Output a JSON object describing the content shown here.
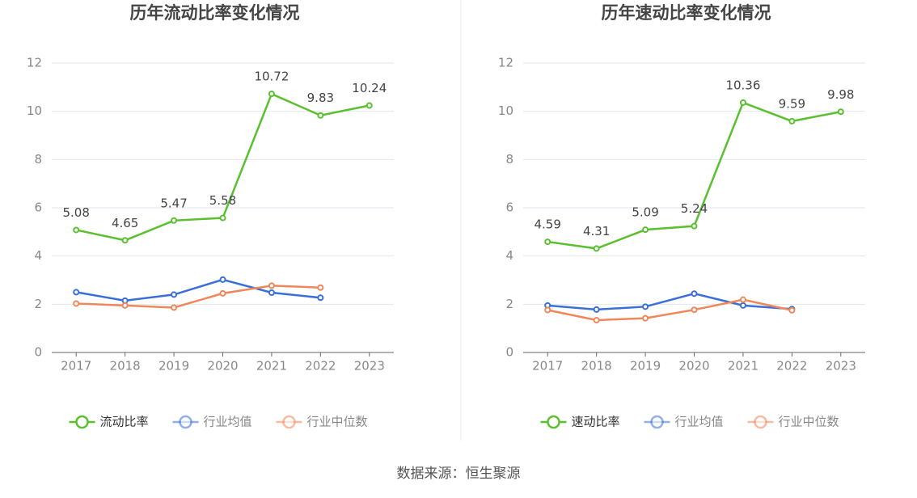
{
  "chart_data": [
    {
      "type": "line",
      "title": "历年流动比率变化情况",
      "categories": [
        "2017",
        "2018",
        "2019",
        "2020",
        "2021",
        "2022",
        "2023"
      ],
      "series": [
        {
          "name": "流动比率",
          "color": "#5ac02f",
          "data_labels": true,
          "values": [
            5.08,
            4.65,
            5.47,
            5.58,
            10.72,
            9.83,
            10.24
          ]
        },
        {
          "name": "行业均值",
          "color": "#3a6fd8",
          "values": [
            2.5,
            2.15,
            2.4,
            3.02,
            2.48,
            2.27,
            null
          ]
        },
        {
          "name": "行业中位数",
          "color": "#f0875a",
          "values": [
            2.03,
            1.95,
            1.86,
            2.45,
            2.77,
            2.69,
            null
          ]
        }
      ],
      "ylim": [
        0,
        12
      ],
      "yticks": [
        0,
        2,
        4,
        6,
        8,
        10,
        12
      ],
      "grid": true,
      "legend": "bottom"
    },
    {
      "type": "line",
      "title": "历年速动比率变化情况",
      "categories": [
        "2017",
        "2018",
        "2019",
        "2020",
        "2021",
        "2022",
        "2023"
      ],
      "series": [
        {
          "name": "速动比率",
          "color": "#5ac02f",
          "data_labels": true,
          "values": [
            4.59,
            4.31,
            5.09,
            5.24,
            10.36,
            9.59,
            9.98
          ]
        },
        {
          "name": "行业均值",
          "color": "#3a6fd8",
          "values": [
            1.95,
            1.78,
            1.9,
            2.44,
            1.95,
            1.8,
            null
          ]
        },
        {
          "name": "行业中位数",
          "color": "#f0875a",
          "values": [
            1.76,
            1.34,
            1.42,
            1.77,
            2.19,
            1.75,
            null
          ]
        }
      ],
      "ylim": [
        0,
        12
      ],
      "yticks": [
        0,
        2,
        4,
        6,
        8,
        10,
        12
      ],
      "grid": true,
      "legend": "bottom"
    }
  ],
  "source": "数据来源：恒生聚源"
}
